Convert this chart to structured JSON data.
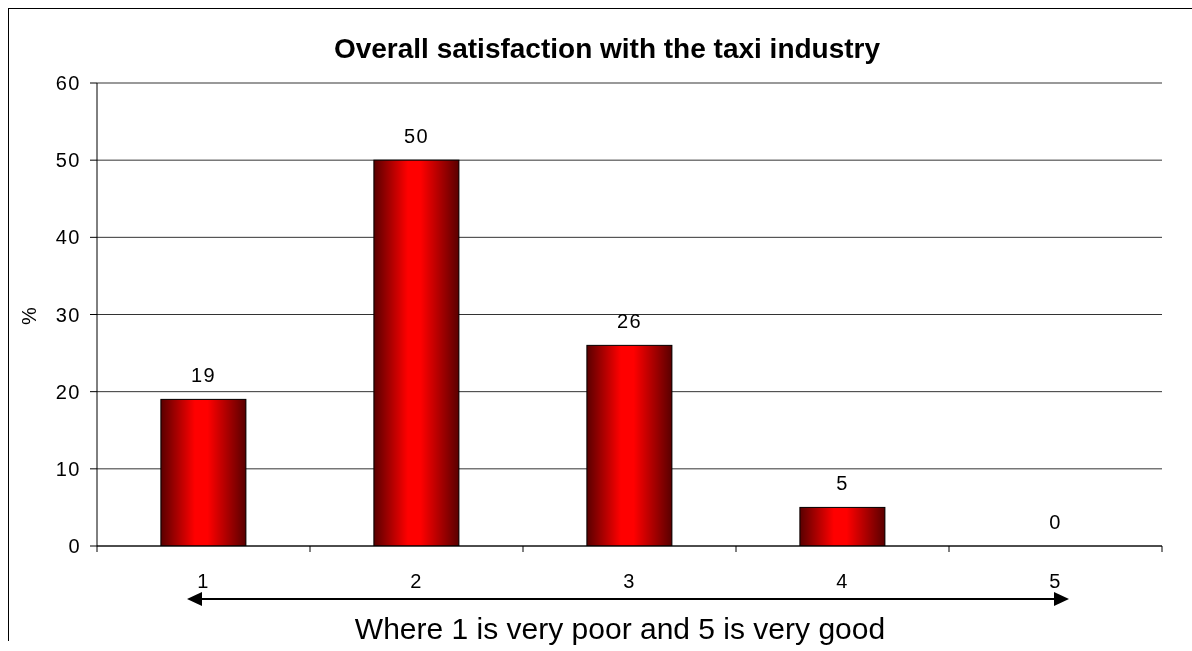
{
  "chart_data": {
    "type": "bar",
    "title": "Overall satisfaction with the taxi industry",
    "categories": [
      "1",
      "2",
      "3",
      "4",
      "5"
    ],
    "values": [
      19,
      50,
      26,
      5,
      0
    ],
    "color": "#ff0000",
    "ylim": [
      0,
      60
    ],
    "yticks": [
      0,
      10,
      20,
      30,
      40,
      50,
      60
    ],
    "grid": "y",
    "ylabel": "%",
    "xlabel": "Where 1 is very poor and 5 is very good",
    "data_labels": true
  }
}
